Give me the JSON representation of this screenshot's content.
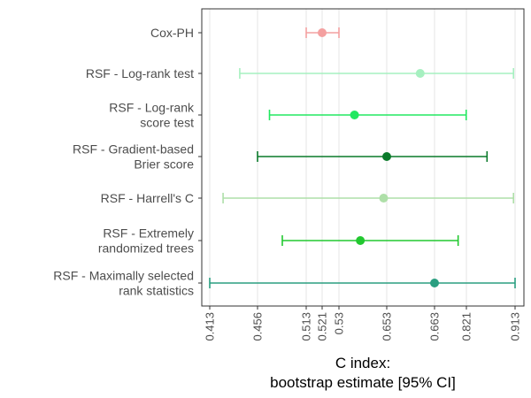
{
  "chart_data": {
    "type": "forest",
    "xlabel_lines": [
      "C index:",
      "bootstrap estimate [95% CI]"
    ],
    "ylabel": "",
    "x_ticks": [
      "0.413",
      "0.456",
      "0.513",
      "0.521",
      "0.53",
      "0.653",
      "0.663",
      "0.821",
      "0.913"
    ],
    "grid": true,
    "legend": "none",
    "series": [
      {
        "label_lines": [
          "Cox-PH"
        ],
        "lo": 0.513,
        "est": 0.521,
        "hi": 0.53,
        "color": "#f4a0a0"
      },
      {
        "label_lines": [
          "RSF - Log-rank test"
        ],
        "lo": 0.44,
        "est": 0.66,
        "hi": 0.91,
        "color": "#a6f0c0"
      },
      {
        "label_lines": [
          "RSF - Log-rank",
          "score test"
        ],
        "lo": 0.47,
        "est": 0.57,
        "hi": 0.82,
        "color": "#22e860"
      },
      {
        "label_lines": [
          "RSF - Gradient-based",
          "Brier score"
        ],
        "lo": 0.456,
        "est": 0.653,
        "hi": 0.86,
        "color": "#0a7a2a"
      },
      {
        "label_lines": [
          "RSF - Harrell's C"
        ],
        "lo": 0.425,
        "est": 0.645,
        "hi": 0.91,
        "color": "#aedfa8"
      },
      {
        "label_lines": [
          "RSF - Extremely",
          "randomized trees"
        ],
        "lo": 0.485,
        "est": 0.585,
        "hi": 0.78,
        "color": "#22c830"
      },
      {
        "label_lines": [
          "RSF - Maximally selected",
          "rank statistics"
        ],
        "lo": 0.413,
        "est": 0.663,
        "hi": 0.913,
        "color": "#2a9e80"
      }
    ]
  }
}
